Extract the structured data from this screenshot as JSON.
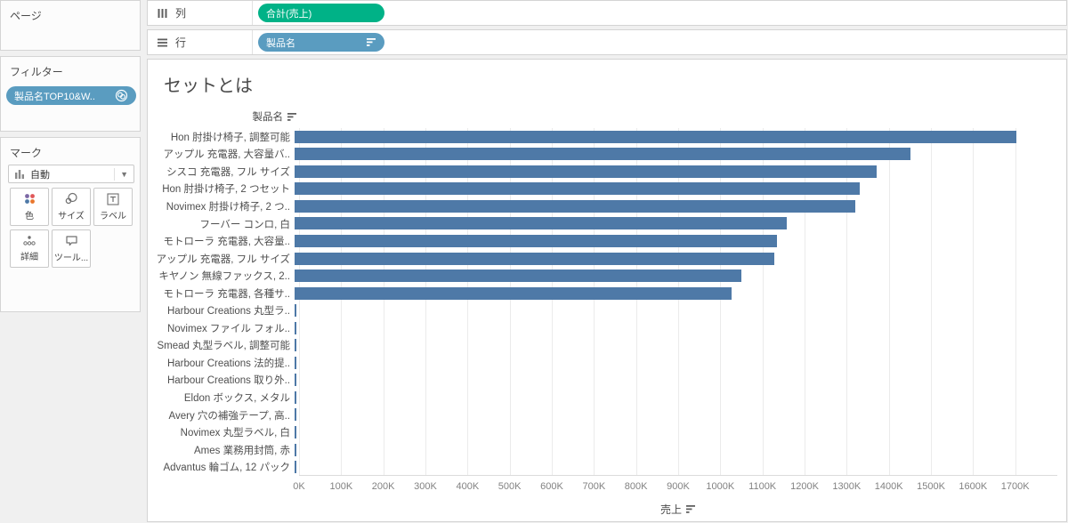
{
  "colors": {
    "bar": "#4e79a7",
    "measure_pill": "#00b287",
    "dimension_pill": "#5a9cc0",
    "color_icon_dots": [
      "#7c68a5",
      "#e05759",
      "#4e79a7",
      "#e8762c"
    ]
  },
  "shelves": {
    "columns": {
      "label": "列",
      "pill": "合計(売上)"
    },
    "rows": {
      "label": "行",
      "pill": "製品名"
    }
  },
  "sidebar": {
    "pages": {
      "title": "ページ"
    },
    "filters": {
      "title": "フィルター",
      "pill": "製品名TOP10&W.."
    },
    "marks": {
      "title": "マーク",
      "mark_type": "自動",
      "buttons": [
        {
          "label": "色"
        },
        {
          "label": "サイズ"
        },
        {
          "label": "ラベル"
        },
        {
          "label": "詳細"
        },
        {
          "label": "ツール..."
        }
      ]
    }
  },
  "chart": {
    "title": "セットとは",
    "row_field_header": "製品名",
    "axis_title": "売上"
  },
  "chart_data": {
    "type": "bar",
    "orientation": "horizontal",
    "title": "セットとは",
    "row_field": "製品名",
    "xlabel": "売上",
    "xlim": [
      0,
      1800000
    ],
    "tick_interval": 100000,
    "tick_labels": [
      "0K",
      "100K",
      "200K",
      "300K",
      "400K",
      "500K",
      "600K",
      "700K",
      "800K",
      "900K",
      "1000K",
      "1100K",
      "1200K",
      "1300K",
      "1400K",
      "1500K",
      "1600K",
      "1700K"
    ],
    "grid": true,
    "bar_color": "#4e79a7",
    "sorted": "descending",
    "categories": [
      "Hon 肘掛け椅子, 調整可能",
      "アップル 充電器, 大容量バ..",
      "シスコ 充電器, フル サイズ",
      "Hon 肘掛け椅子, 2 つセット",
      "Novimex 肘掛け椅子, 2 つ..",
      "フーバー コンロ, 白",
      "モトローラ 充電器, 大容量..",
      "アップル 充電器, フル サイズ",
      "キヤノン 無線ファックス, 2..",
      "モトローラ 充電器, 各種サ..",
      "Harbour Creations 丸型ラ..",
      "Novimex ファイル フォル..",
      "Smead 丸型ラベル, 調整可能",
      "Harbour Creations 法的提..",
      "Harbour Creations 取り外..",
      "Eldon ボックス, メタル",
      "Avery 穴の補強テープ, 高..",
      "Novimex 丸型ラベル, 白",
      "Ames 業務用封筒, 赤",
      "Advantus 輪ゴム, 12 パック"
    ],
    "values": [
      1713000,
      1461000,
      1382000,
      1342000,
      1332000,
      1169000,
      1146000,
      1139000,
      1061000,
      1038000,
      5000,
      4000,
      4000,
      4000,
      3000,
      3000,
      3000,
      3000,
      2500,
      2000
    ]
  }
}
